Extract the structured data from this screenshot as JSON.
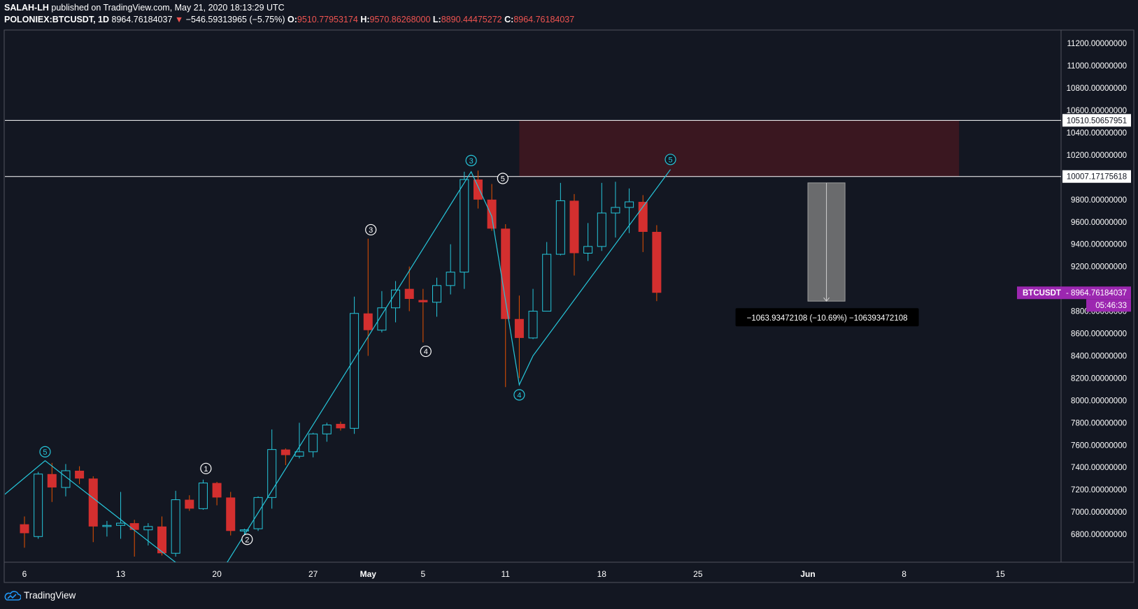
{
  "header": {
    "publisher": "SALAH-LH",
    "published_text": "published on TradingView.com, May 21, 2020 18:13:29 UTC",
    "symbol": "POLONIEX:BTCUSDT, 1D",
    "last": "8964.76184037",
    "change": "−546.59313965 (−5.75%)",
    "o_label": "O:",
    "o_val": "9510.77953174",
    "h_label": "H:",
    "h_val": "9570.86268000",
    "l_label": "L:",
    "l_val": "8890.44475272",
    "c_label": "C:",
    "c_val": "8964.76184037"
  },
  "footer": {
    "brand": "TradingView"
  },
  "colors": {
    "background": "#131722",
    "up": "#26c6da",
    "down": "#d32f2f",
    "wave": "#26c6da",
    "zone": "#3a1720",
    "badge": "#9c27b0",
    "level_line": "#ffffff"
  },
  "chart_data": {
    "type": "candlestick",
    "interval": "1D",
    "ylim": [
      6550,
      11320
    ],
    "x_ticks": [
      {
        "label": "6",
        "day": 0
      },
      {
        "label": "13",
        "day": 7
      },
      {
        "label": "20",
        "day": 14
      },
      {
        "label": "27",
        "day": 21
      },
      {
        "label": "May",
        "day": 25
      },
      {
        "label": "5",
        "day": 29
      },
      {
        "label": "11",
        "day": 35
      },
      {
        "label": "18",
        "day": 42
      },
      {
        "label": "25",
        "day": 49
      },
      {
        "label": "Jun",
        "day": 57
      },
      {
        "label": "8",
        "day": 64
      },
      {
        "label": "15",
        "day": 71
      }
    ],
    "y_ticks": [
      "6800.00000000",
      "7000.00000000",
      "7200.00000000",
      "7400.00000000",
      "7600.00000000",
      "7800.00000000",
      "8000.00000000",
      "8200.00000000",
      "8400.00000000",
      "8600.00000000",
      "8800.00000000",
      "9200.00000000",
      "9400.00000000",
      "9600.00000000",
      "9800.00000000",
      "10200.00000000",
      "10400.00000000",
      "10600.00000000",
      "10800.00000000",
      "11000.00000000",
      "11200.00000000"
    ],
    "candles": [
      {
        "d": 0,
        "o": 6890,
        "h": 6960,
        "l": 6680,
        "c": 6810
      },
      {
        "d": 1,
        "o": 6780,
        "h": 7360,
        "l": 6760,
        "c": 7340
      },
      {
        "d": 2,
        "o": 7340,
        "h": 7440,
        "l": 7090,
        "c": 7220
      },
      {
        "d": 3,
        "o": 7220,
        "h": 7430,
        "l": 7140,
        "c": 7370
      },
      {
        "d": 4,
        "o": 7370,
        "h": 7410,
        "l": 7250,
        "c": 7300
      },
      {
        "d": 5,
        "o": 7300,
        "h": 7320,
        "l": 6730,
        "c": 6870
      },
      {
        "d": 6,
        "o": 6870,
        "h": 6920,
        "l": 6780,
        "c": 6880
      },
      {
        "d": 7,
        "o": 6880,
        "h": 7180,
        "l": 6760,
        "c": 6900
      },
      {
        "d": 8,
        "o": 6900,
        "h": 6930,
        "l": 6600,
        "c": 6840
      },
      {
        "d": 9,
        "o": 6840,
        "h": 6900,
        "l": 6700,
        "c": 6870
      },
      {
        "d": 10,
        "o": 6870,
        "h": 6960,
        "l": 6610,
        "c": 6630
      },
      {
        "d": 11,
        "o": 6630,
        "h": 7190,
        "l": 6600,
        "c": 7110
      },
      {
        "d": 12,
        "o": 7110,
        "h": 7150,
        "l": 7010,
        "c": 7030
      },
      {
        "d": 13,
        "o": 7030,
        "h": 7290,
        "l": 7020,
        "c": 7260
      },
      {
        "d": 14,
        "o": 7260,
        "h": 7270,
        "l": 7060,
        "c": 7130
      },
      {
        "d": 15,
        "o": 7130,
        "h": 7180,
        "l": 6790,
        "c": 6830
      },
      {
        "d": 16,
        "o": 6830,
        "h": 6850,
        "l": 6800,
        "c": 6840
      },
      {
        "d": 17,
        "o": 6850,
        "h": 7140,
        "l": 6830,
        "c": 7130
      },
      {
        "d": 18,
        "o": 7130,
        "h": 7740,
        "l": 7030,
        "c": 7560
      },
      {
        "d": 19,
        "o": 7560,
        "h": 7570,
        "l": 7420,
        "c": 7510
      },
      {
        "d": 20,
        "o": 7500,
        "h": 7800,
        "l": 7480,
        "c": 7540
      },
      {
        "d": 21,
        "o": 7540,
        "h": 7710,
        "l": 7490,
        "c": 7700
      },
      {
        "d": 22,
        "o": 7700,
        "h": 7800,
        "l": 7630,
        "c": 7780
      },
      {
        "d": 23,
        "o": 7790,
        "h": 7810,
        "l": 7730,
        "c": 7750
      },
      {
        "d": 24,
        "o": 7750,
        "h": 8930,
        "l": 7700,
        "c": 8780
      },
      {
        "d": 25,
        "o": 8780,
        "h": 9450,
        "l": 8400,
        "c": 8630
      },
      {
        "d": 26,
        "o": 8630,
        "h": 8980,
        "l": 8610,
        "c": 8830
      },
      {
        "d": 27,
        "o": 8830,
        "h": 9070,
        "l": 8700,
        "c": 8990
      },
      {
        "d": 28,
        "o": 9000,
        "h": 9200,
        "l": 8800,
        "c": 8910
      },
      {
        "d": 29,
        "o": 8900,
        "h": 9000,
        "l": 8520,
        "c": 8880
      },
      {
        "d": 30,
        "o": 8880,
        "h": 9100,
        "l": 8750,
        "c": 9030
      },
      {
        "d": 31,
        "o": 9030,
        "h": 9400,
        "l": 8950,
        "c": 9150
      },
      {
        "d": 32,
        "o": 9150,
        "h": 10050,
        "l": 9000,
        "c": 9980
      },
      {
        "d": 33,
        "o": 9980,
        "h": 10060,
        "l": 9720,
        "c": 9800
      },
      {
        "d": 34,
        "o": 9800,
        "h": 9940,
        "l": 9520,
        "c": 9540
      },
      {
        "d": 35,
        "o": 9540,
        "h": 9580,
        "l": 8120,
        "c": 8730
      },
      {
        "d": 36,
        "o": 8730,
        "h": 8940,
        "l": 8200,
        "c": 8560
      },
      {
        "d": 37,
        "o": 8560,
        "h": 9000,
        "l": 8550,
        "c": 8800
      },
      {
        "d": 38,
        "o": 8800,
        "h": 9420,
        "l": 8800,
        "c": 9310
      },
      {
        "d": 39,
        "o": 9310,
        "h": 9950,
        "l": 9300,
        "c": 9790
      },
      {
        "d": 40,
        "o": 9790,
        "h": 9850,
        "l": 9120,
        "c": 9320
      },
      {
        "d": 41,
        "o": 9320,
        "h": 9590,
        "l": 9250,
        "c": 9380
      },
      {
        "d": 42,
        "o": 9380,
        "h": 9950,
        "l": 9340,
        "c": 9680
      },
      {
        "d": 43,
        "o": 9680,
        "h": 9960,
        "l": 9460,
        "c": 9730
      },
      {
        "d": 44,
        "o": 9730,
        "h": 9900,
        "l": 9500,
        "c": 9780
      },
      {
        "d": 45,
        "o": 9780,
        "h": 9840,
        "l": 9330,
        "c": 9511
      },
      {
        "d": 46,
        "o": 9511,
        "h": 9571,
        "l": 8890,
        "c": 8965
      }
    ],
    "levels": [
      {
        "value": 10510.50657951,
        "label": "10510.50657951"
      },
      {
        "value": 10007.17175618,
        "label": "10007.17175618"
      }
    ],
    "zone": {
      "day_start": 36,
      "day_end": 68,
      "low": 10007.17,
      "high": 10510.51
    },
    "price_badge": {
      "symbol": "BTCUSDT",
      "value": "8964.76184037",
      "countdown": "05:46:33",
      "price": 8964.76
    },
    "measure": {
      "label": "−1063.93472108 (−10.69%) −106393472108",
      "day_start": 57,
      "day_end": 59.7,
      "from": 9950,
      "to": 8890
    },
    "waves": [
      {
        "points": [
          {
            "d": -2,
            "v": 7100
          },
          {
            "d": 1.5,
            "v": 7460
          },
          {
            "d": 11.5,
            "v": 6500
          }
        ],
        "labels": [
          {
            "text": "5",
            "d": 1.5,
            "v": 7540
          }
        ]
      },
      {
        "points": [
          {
            "d": 14.5,
            "v": 6500
          },
          {
            "d": 32.5,
            "v": 10050
          },
          {
            "d": 34,
            "v": 9650
          },
          {
            "d": 36,
            "v": 8140
          },
          {
            "d": 37,
            "v": 8400
          },
          {
            "d": 47,
            "v": 10070
          }
        ],
        "labels": [
          {
            "text": "3",
            "d": 32.5,
            "v": 10150
          },
          {
            "text": "4",
            "d": 36,
            "v": 8050
          },
          {
            "text": "5",
            "d": 47,
            "v": 10160
          }
        ]
      }
    ],
    "wave_labels_white": [
      {
        "text": "1",
        "d": 13.2,
        "v": 7390
      },
      {
        "text": "2",
        "d": 16.2,
        "v": 6755
      },
      {
        "text": "3",
        "d": 25.2,
        "v": 9530
      },
      {
        "text": "4",
        "d": 29.2,
        "v": 8440
      },
      {
        "text": "5",
        "d": 34.8,
        "v": 9990
      }
    ]
  }
}
